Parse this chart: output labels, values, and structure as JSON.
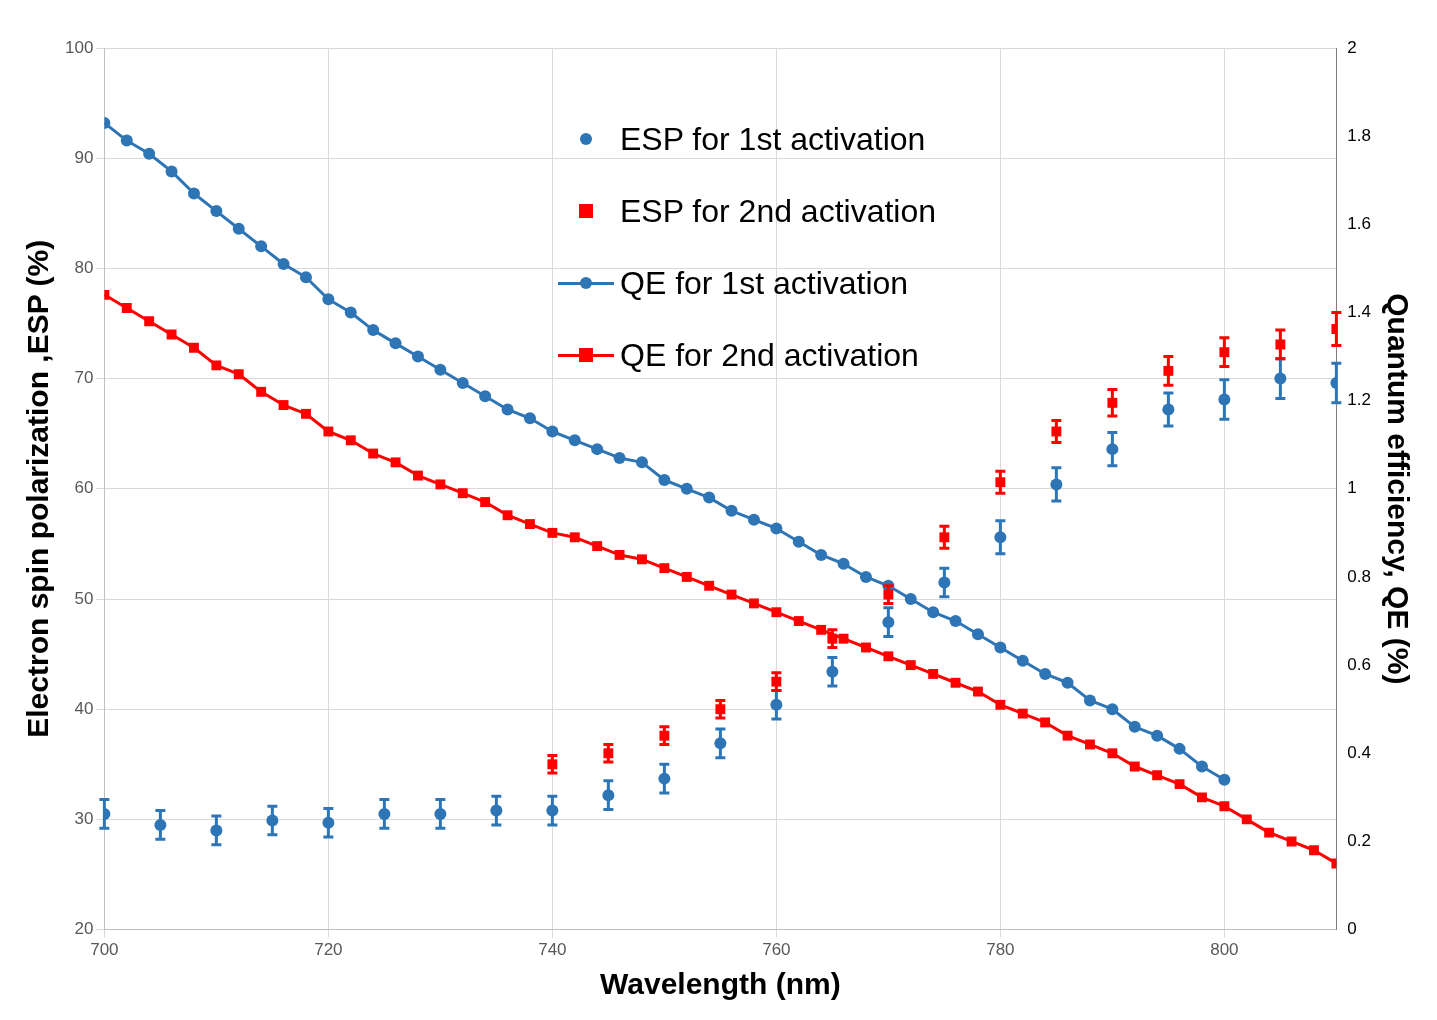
{
  "chart_data": {
    "type": "line",
    "xlabel": "Wavelength (nm)",
    "ylabel": "Electron spin polarization ,ESP (%)",
    "y2label": "Quantum efficiency, QE (%)",
    "xlim": [
      700,
      810
    ],
    "xticks": [
      700,
      720,
      740,
      760,
      780,
      800
    ],
    "ylim": [
      20,
      100
    ],
    "yticks": [
      20,
      30,
      40,
      50,
      60,
      70,
      80,
      90,
      100
    ],
    "y2lim": [
      0,
      2
    ],
    "y2ticks": [
      0,
      0.2,
      0.4,
      0.6,
      0.8,
      1,
      1.2,
      1.4,
      1.6,
      1.8,
      2
    ],
    "grid": true,
    "legend": "top",
    "series": [
      {
        "name": "ESP for 1st activation",
        "type": "scatter",
        "marker": "circle",
        "color": "#2e75b6",
        "x": [
          700,
          705,
          710,
          715,
          720,
          725,
          730,
          735,
          740,
          745,
          750,
          755,
          760,
          765,
          770,
          775,
          780,
          785,
          790,
          795,
          800,
          805,
          810
        ],
        "values": [
          30.5,
          29.5,
          29.0,
          29.9,
          29.7,
          30.5,
          30.5,
          30.8,
          30.8,
          32.2,
          33.7,
          36.9,
          40.4,
          43.4,
          47.9,
          51.5,
          55.6,
          60.4,
          63.6,
          67.2,
          68.1,
          70.0,
          69.6
        ],
        "errors": [
          1.3,
          1.3,
          1.3,
          1.3,
          1.3,
          1.3,
          1.3,
          1.3,
          1.3,
          1.3,
          1.3,
          1.3,
          1.3,
          1.3,
          1.3,
          1.3,
          1.5,
          1.5,
          1.5,
          1.5,
          1.8,
          1.8,
          1.8
        ]
      },
      {
        "name": "ESP for 2nd activation",
        "type": "scatter",
        "marker": "square",
        "color": "#ff0000",
        "x": [
          740,
          745,
          750,
          755,
          760,
          765,
          770,
          775,
          780,
          785,
          790,
          795,
          800,
          805,
          810
        ],
        "values": [
          35.0,
          36.0,
          37.6,
          40.0,
          42.5,
          46.4,
          50.4,
          55.6,
          60.6,
          65.2,
          67.8,
          70.7,
          72.4,
          73.1,
          74.5
        ],
        "errors": [
          0.8,
          0.8,
          0.8,
          0.8,
          0.8,
          0.8,
          0.8,
          1.0,
          1.0,
          1.0,
          1.2,
          1.3,
          1.3,
          1.3,
          1.5
        ]
      },
      {
        "name": "QE for 1st activation",
        "type": "line",
        "axis": "y2",
        "marker": "circle",
        "color": "#2e75b6",
        "x": [
          700,
          702,
          704,
          706,
          708,
          710,
          712,
          714,
          716,
          718,
          720,
          722,
          724,
          726,
          728,
          730,
          732,
          734,
          736,
          738,
          740,
          742,
          744,
          746,
          748,
          750,
          752,
          754,
          756,
          758,
          760,
          762,
          764,
          766,
          768,
          770,
          772,
          774,
          776,
          778,
          780,
          782,
          784,
          786,
          788,
          790,
          792,
          794,
          796,
          798,
          800
        ],
        "values": [
          1.83,
          1.79,
          1.76,
          1.72,
          1.67,
          1.63,
          1.59,
          1.55,
          1.51,
          1.48,
          1.43,
          1.4,
          1.36,
          1.33,
          1.3,
          1.27,
          1.24,
          1.21,
          1.18,
          1.16,
          1.13,
          1.11,
          1.09,
          1.07,
          1.06,
          1.02,
          1.0,
          0.98,
          0.95,
          0.93,
          0.91,
          0.88,
          0.85,
          0.83,
          0.8,
          0.78,
          0.75,
          0.72,
          0.7,
          0.67,
          0.64,
          0.61,
          0.58,
          0.56,
          0.52,
          0.5,
          0.46,
          0.44,
          0.41,
          0.37,
          0.34
        ]
      },
      {
        "name": "QE for 2nd activation",
        "type": "line",
        "axis": "y2",
        "marker": "square",
        "color": "#ff0000",
        "x": [
          700,
          702,
          704,
          706,
          708,
          710,
          712,
          714,
          716,
          718,
          720,
          722,
          724,
          726,
          728,
          730,
          732,
          734,
          736,
          738,
          740,
          742,
          744,
          746,
          748,
          750,
          752,
          754,
          756,
          758,
          760,
          762,
          764,
          766,
          768,
          770,
          772,
          774,
          776,
          778,
          780,
          782,
          784,
          786,
          788,
          790,
          792,
          794,
          796,
          798,
          800,
          802,
          804,
          806,
          808,
          810
        ],
        "values": [
          1.44,
          1.41,
          1.38,
          1.35,
          1.32,
          1.28,
          1.26,
          1.22,
          1.19,
          1.17,
          1.13,
          1.11,
          1.08,
          1.06,
          1.03,
          1.01,
          0.99,
          0.97,
          0.94,
          0.92,
          0.9,
          0.89,
          0.87,
          0.85,
          0.84,
          0.82,
          0.8,
          0.78,
          0.76,
          0.74,
          0.72,
          0.7,
          0.68,
          0.66,
          0.64,
          0.62,
          0.6,
          0.58,
          0.56,
          0.54,
          0.51,
          0.49,
          0.47,
          0.44,
          0.42,
          0.4,
          0.37,
          0.35,
          0.33,
          0.3,
          0.28,
          0.25,
          0.22,
          0.2,
          0.18,
          0.15
        ]
      }
    ]
  }
}
